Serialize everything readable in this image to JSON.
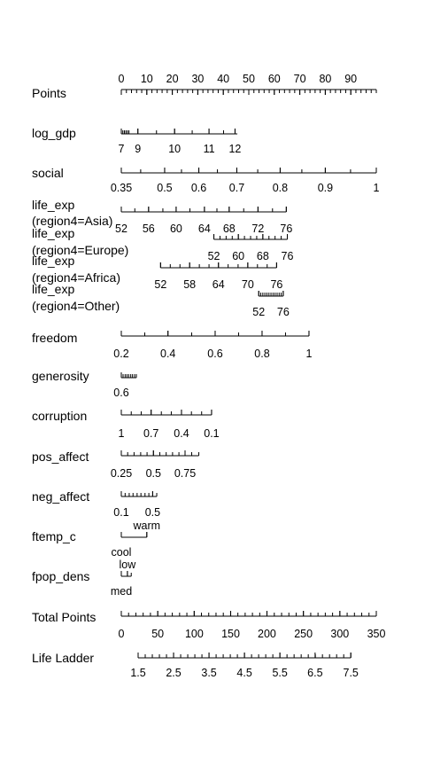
{
  "chart_data": {
    "type": "nomogram",
    "axes": [
      {
        "label": "Points",
        "labels": [
          {
            "text": "0",
            "value": 0
          },
          {
            "text": "10",
            "value": 10
          },
          {
            "text": "20",
            "value": 20
          },
          {
            "text": "30",
            "value": 30
          },
          {
            "text": "40",
            "value": 40
          },
          {
            "text": "50",
            "value": 50
          },
          {
            "text": "60",
            "value": 60
          },
          {
            "text": "70",
            "value": 70
          },
          {
            "text": "80",
            "value": 80
          },
          {
            "text": "90",
            "value": 90
          }
        ],
        "span": [
          0,
          100
        ],
        "minor_step": 2,
        "labels_above": true
      },
      {
        "label": "log_gdp",
        "labels": [
          {
            "text": "7",
            "value": 0
          },
          {
            "text": "9",
            "value": 6.5
          },
          {
            "text": "10",
            "value": 20.9
          },
          {
            "text": "11",
            "value": 34.4
          },
          {
            "text": "12",
            "value": 44.6
          }
        ],
        "span": [
          0,
          45.5
        ],
        "ticks": [
          0,
          0.6,
          1.2,
          1.8,
          2.4,
          3,
          6.5,
          13.8,
          20.9,
          27.8,
          34.4,
          40.1,
          44.6
        ]
      },
      {
        "label": "social",
        "labels": [
          {
            "text": "0.35",
            "value": 0
          },
          {
            "text": "0.5",
            "value": 17
          },
          {
            "text": "0.6",
            "value": 30.4
          },
          {
            "text": "0.7",
            "value": 45.3
          },
          {
            "text": "0.8",
            "value": 62.3
          },
          {
            "text": "0.9",
            "value": 80
          },
          {
            "text": "1",
            "value": 100
          }
        ],
        "span": [
          0,
          100
        ],
        "ticks": [
          0,
          7.6,
          17,
          23.6,
          30.4,
          37.7,
          45.3,
          53.5,
          62.3,
          70.8,
          80,
          89.9,
          100
        ]
      },
      {
        "label": "life_exp\n(region4=Asia)",
        "labels": [
          {
            "text": "52",
            "value": 0
          },
          {
            "text": "56",
            "value": 10.7
          },
          {
            "text": "60",
            "value": 21.5
          },
          {
            "text": "64",
            "value": 32.6
          },
          {
            "text": "68",
            "value": 42.3
          },
          {
            "text": "72",
            "value": 53.6
          },
          {
            "text": "76",
            "value": 64.7
          }
        ],
        "span": [
          0,
          64.7
        ],
        "ticks": [
          0,
          5.3,
          10.7,
          16.3,
          21.5,
          26.9,
          32.6,
          37.5,
          42.3,
          48,
          53.6,
          59.3,
          64.7
        ]
      },
      {
        "label": "life_exp\n(region4=Europe)",
        "labels": [
          {
            "text": "52",
            "value": 36.3
          },
          {
            "text": "60",
            "value": 45.9
          },
          {
            "text": "68",
            "value": 55.5
          },
          {
            "text": "76",
            "value": 65.1
          }
        ],
        "span": [
          36.3,
          65.1
        ],
        "ticks": [
          36.3,
          38.7,
          41.1,
          43.5,
          45.9,
          48.3,
          50.7,
          53.1,
          55.5,
          57.9,
          60.3,
          62.7,
          65.1
        ]
      },
      {
        "label": "life_exp\n(region4=Africa)",
        "labels": [
          {
            "text": "52",
            "value": 15.4
          },
          {
            "text": "58",
            "value": 26.8
          },
          {
            "text": "64",
            "value": 38.1
          },
          {
            "text": "70",
            "value": 49.6
          },
          {
            "text": "76",
            "value": 60.9
          }
        ],
        "span": [
          15.4,
          60.9
        ],
        "ticks": [
          15.4,
          19.2,
          23,
          26.8,
          30.6,
          34.4,
          38.1,
          41.9,
          45.8,
          49.6,
          53.4,
          57.2,
          60.9
        ]
      },
      {
        "label": "life_exp\n(region4=Other)",
        "labels": [
          {
            "text": "52",
            "value": 53.9
          },
          {
            "text": "76",
            "value": 63.5
          }
        ],
        "span": [
          53.9,
          63.5
        ],
        "ticks": [
          53.9,
          54.7,
          55.5,
          56.3,
          57.1,
          57.9,
          58.7,
          59.5,
          60.3,
          61.1,
          61.9,
          62.7,
          63.5
        ]
      },
      {
        "label": "freedom",
        "labels": [
          {
            "text": "0.2",
            "value": 0
          },
          {
            "text": "0.4",
            "value": 18.3
          },
          {
            "text": "0.6",
            "value": 36.8
          },
          {
            "text": "0.8",
            "value": 55.2
          },
          {
            "text": "1",
            "value": 73.6
          }
        ],
        "span": [
          0,
          73.6
        ],
        "ticks": [
          0,
          9.2,
          18.3,
          27.6,
          36.8,
          46,
          55.2,
          64.4,
          73.6
        ]
      },
      {
        "label": "generosity",
        "labels": [
          {
            "text": "0.6",
            "value": 0
          }
        ],
        "span": [
          0,
          5.9
        ],
        "ticks": [
          0,
          0.7,
          1.5,
          2.2,
          2.9,
          3.7,
          4.4,
          5.2,
          5.9
        ]
      },
      {
        "label": "corruption",
        "labels": [
          {
            "text": "1",
            "value": 0
          },
          {
            "text": "0.7",
            "value": 11.7
          },
          {
            "text": "0.4",
            "value": 23.6
          },
          {
            "text": "0.1",
            "value": 35.4
          }
        ],
        "span": [
          0,
          35.4
        ],
        "ticks": [
          0,
          3.9,
          7.8,
          11.7,
          15.7,
          19.6,
          23.6,
          27.5,
          31.5,
          35.4
        ]
      },
      {
        "label": "pos_affect",
        "labels": [
          {
            "text": "0.25",
            "value": 0
          },
          {
            "text": "0.5",
            "value": 12.6
          },
          {
            "text": "0.75",
            "value": 25
          }
        ],
        "span": [
          0,
          30.4
        ],
        "ticks": [
          0,
          2.5,
          5,
          7.6,
          10.1,
          12.6,
          15.1,
          17.6,
          20.1,
          22.6,
          25,
          27.6,
          30.4
        ]
      },
      {
        "label": "neg_affect",
        "labels": [
          {
            "text": "0.1",
            "value": 0
          },
          {
            "text": "0.5",
            "value": 12.3
          }
        ],
        "span": [
          0,
          13.9
        ],
        "ticks": [
          0,
          1.5,
          3.1,
          4.6,
          6.2,
          7.7,
          9.3,
          10.8,
          12.3,
          13.9
        ]
      },
      {
        "label": "ftemp_c",
        "category_axis": true,
        "labels": [
          {
            "text": "warm",
            "value": 10,
            "pos": "above"
          },
          {
            "text": "cool",
            "value": 0,
            "pos": "below"
          }
        ],
        "span": [
          0,
          10
        ],
        "ticks": [
          0,
          10
        ]
      },
      {
        "label": "fpop_dens",
        "category_axis": true,
        "labels": [
          {
            "text": "low",
            "value": 2.4,
            "pos": "above"
          },
          {
            "text": "med",
            "value": 0,
            "pos": "below"
          }
        ],
        "span": [
          0,
          3.9
        ],
        "ticks": [
          0,
          2.4,
          3.9
        ]
      },
      {
        "label": "Total Points",
        "labels": [
          {
            "text": "0",
            "value": 0
          },
          {
            "text": "50",
            "value": 14.3
          },
          {
            "text": "100",
            "value": 28.6
          },
          {
            "text": "150",
            "value": 42.9
          },
          {
            "text": "200",
            "value": 57.1
          },
          {
            "text": "250",
            "value": 71.4
          },
          {
            "text": "300",
            "value": 85.7
          },
          {
            "text": "350",
            "value": 100
          }
        ],
        "span": [
          0,
          100
        ],
        "minor_step": 2.857
      },
      {
        "label": "Life Ladder",
        "labels": [
          {
            "text": "1.5",
            "value": 6.6
          },
          {
            "text": "2.5",
            "value": 20.5
          },
          {
            "text": "3.5",
            "value": 34.4
          },
          {
            "text": "4.5",
            "value": 48.3
          },
          {
            "text": "5.5",
            "value": 62.2
          },
          {
            "text": "6.5",
            "value": 76
          },
          {
            "text": "7.5",
            "value": 90
          }
        ],
        "span": [
          6.6,
          90
        ],
        "minor_step": 2.78
      }
    ]
  }
}
